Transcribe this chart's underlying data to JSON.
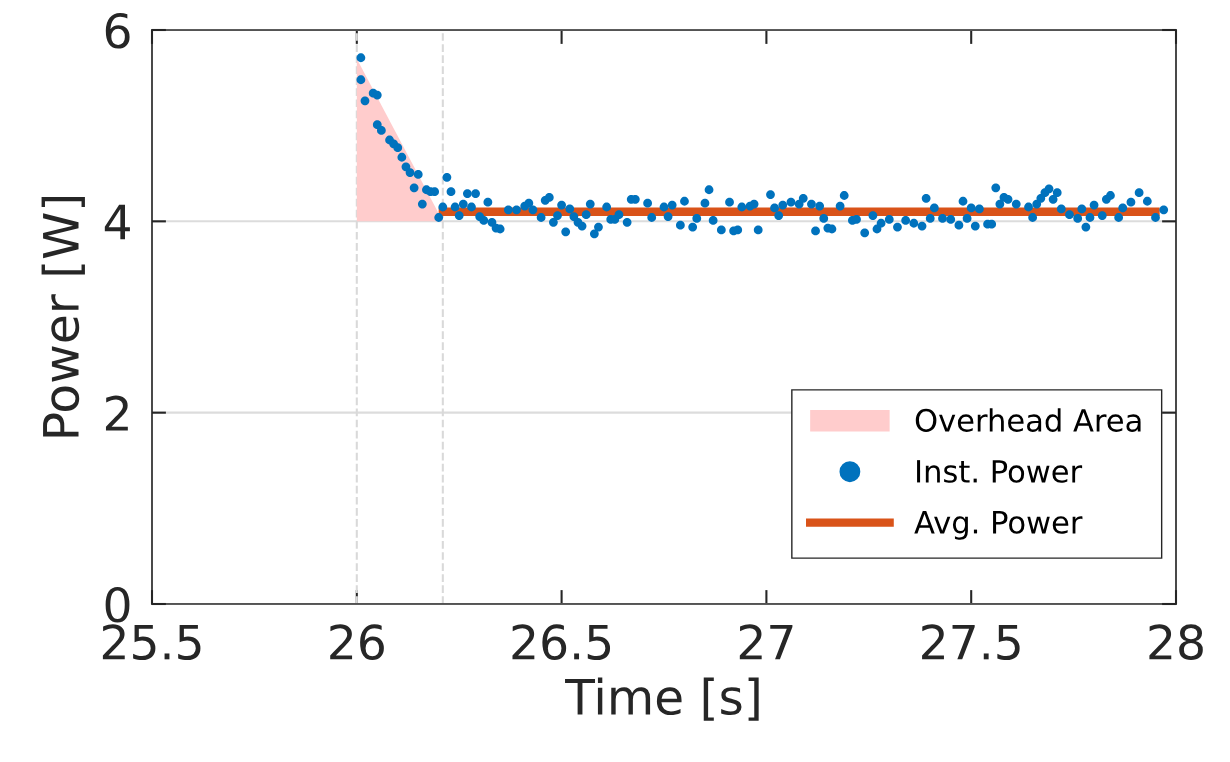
{
  "chart_data": {
    "type": "scatter",
    "xlabel": "Time [s]",
    "ylabel": "Power [W]",
    "xlim": [
      25.5,
      28
    ],
    "xticks": [
      25.5,
      26,
      26.5,
      27,
      27.5,
      28
    ],
    "ylim": [
      0,
      6
    ],
    "yticks": [
      0,
      2,
      4,
      6
    ],
    "grid": "y",
    "legend": "bottom right",
    "ref_lines": [
      {
        "axis": "x",
        "value": 26.0,
        "color": "#d9d9d9",
        "line_style": "dashed"
      },
      {
        "axis": "x",
        "value": 26.21,
        "color": "#d9d9d9",
        "line_style": "dashed"
      }
    ],
    "series": [
      {
        "name": "Overhead Area",
        "type": "area",
        "color": "#ffcccc",
        "x": [
          26.0,
          26.0,
          26.21
        ],
        "values": [
          4.0,
          5.7,
          4.0
        ]
      },
      {
        "name": "Inst. Power",
        "color": "#0072bd",
        "marker": "circle",
        "x": [
          26.01,
          26.01,
          26.02,
          26.04,
          26.05,
          26.05,
          26.06,
          26.08,
          26.09,
          26.1,
          26.11,
          26.12,
          26.13,
          26.14,
          26.15,
          26.16,
          26.17,
          26.18,
          26.19,
          26.2,
          26.21,
          26.22,
          26.23,
          26.24,
          26.25,
          26.26,
          26.27,
          26.28,
          26.29,
          26.3,
          26.31,
          26.32,
          26.33,
          26.34,
          26.35,
          26.37,
          26.39,
          26.41,
          26.42,
          26.43,
          26.45,
          26.46,
          26.47,
          26.48,
          26.49,
          26.5,
          26.51,
          26.52,
          26.53,
          26.54,
          26.55,
          26.56,
          26.57,
          26.58,
          26.59,
          26.61,
          26.62,
          26.63,
          26.64,
          26.66,
          26.67,
          26.68,
          26.71,
          26.72,
          26.75,
          26.76,
          26.77,
          26.79,
          26.8,
          26.82,
          26.83,
          26.85,
          26.86,
          26.87,
          26.89,
          26.91,
          26.92,
          26.93,
          26.94,
          26.96,
          26.97,
          26.98,
          27.01,
          27.02,
          27.03,
          27.04,
          27.06,
          27.08,
          27.09,
          27.11,
          27.12,
          27.13,
          27.14,
          27.15,
          27.16,
          27.18,
          27.19,
          27.21,
          27.22,
          27.24,
          27.26,
          27.27,
          27.28,
          27.3,
          27.32,
          27.34,
          27.36,
          27.38,
          27.39,
          27.4,
          27.41,
          27.43,
          27.45,
          27.47,
          27.48,
          27.49,
          27.5,
          27.51,
          27.52,
          27.54,
          27.55,
          27.56,
          27.57,
          27.58,
          27.59,
          27.61,
          27.64,
          27.65,
          27.66,
          27.67,
          27.68,
          27.69,
          27.7,
          27.71,
          27.72,
          27.74,
          27.76,
          27.77,
          27.78,
          27.79,
          27.8,
          27.82,
          27.83,
          27.84,
          27.86,
          27.87,
          27.89,
          27.91,
          27.93,
          27.95,
          27.97
        ],
        "values": [
          5.71,
          5.48,
          5.26,
          5.34,
          5.32,
          5.01,
          4.95,
          4.85,
          4.81,
          4.77,
          4.67,
          4.57,
          4.51,
          4.35,
          4.49,
          4.18,
          4.33,
          4.31,
          4.31,
          4.04,
          4.15,
          4.46,
          4.31,
          4.15,
          4.06,
          4.18,
          4.29,
          4.15,
          4.29,
          4.05,
          4.01,
          4.2,
          3.99,
          3.93,
          3.92,
          4.12,
          4.12,
          4.16,
          4.19,
          4.12,
          4.04,
          4.22,
          4.25,
          3.99,
          4.06,
          4.17,
          3.89,
          4.13,
          4.05,
          3.99,
          3.95,
          4.07,
          4.18,
          3.87,
          3.94,
          4.15,
          4.02,
          4.02,
          4.07,
          3.99,
          4.23,
          4.23,
          4.19,
          4.04,
          4.15,
          4.05,
          4.17,
          3.96,
          4.21,
          3.94,
          4.03,
          4.19,
          4.33,
          4.01,
          3.91,
          4.2,
          3.9,
          3.91,
          4.15,
          4.16,
          4.18,
          3.91,
          4.28,
          4.14,
          4.06,
          4.17,
          4.2,
          4.18,
          4.24,
          4.18,
          3.9,
          4.16,
          4.03,
          3.93,
          3.92,
          4.16,
          4.27,
          4.01,
          4.02,
          3.88,
          4.06,
          3.92,
          3.98,
          4.02,
          3.94,
          4.01,
          3.98,
          3.95,
          4.24,
          4.03,
          4.14,
          4.03,
          4.02,
          3.96,
          4.21,
          4.03,
          4.14,
          3.95,
          4.13,
          3.97,
          3.97,
          4.35,
          4.18,
          4.25,
          4.23,
          4.18,
          4.15,
          4.04,
          4.18,
          4.24,
          4.3,
          4.34,
          4.23,
          4.3,
          4.13,
          4.07,
          4.03,
          4.13,
          3.94,
          4.04,
          4.17,
          4.06,
          4.23,
          4.27,
          4.04,
          4.14,
          4.2,
          4.3,
          4.21,
          4.04,
          4.12
        ]
      },
      {
        "name": "Avg. Power",
        "type": "line",
        "color": "#d95319",
        "x": [
          26.21,
          27.95
        ],
        "values": [
          4.1,
          4.1
        ],
        "marker": "none"
      }
    ]
  }
}
